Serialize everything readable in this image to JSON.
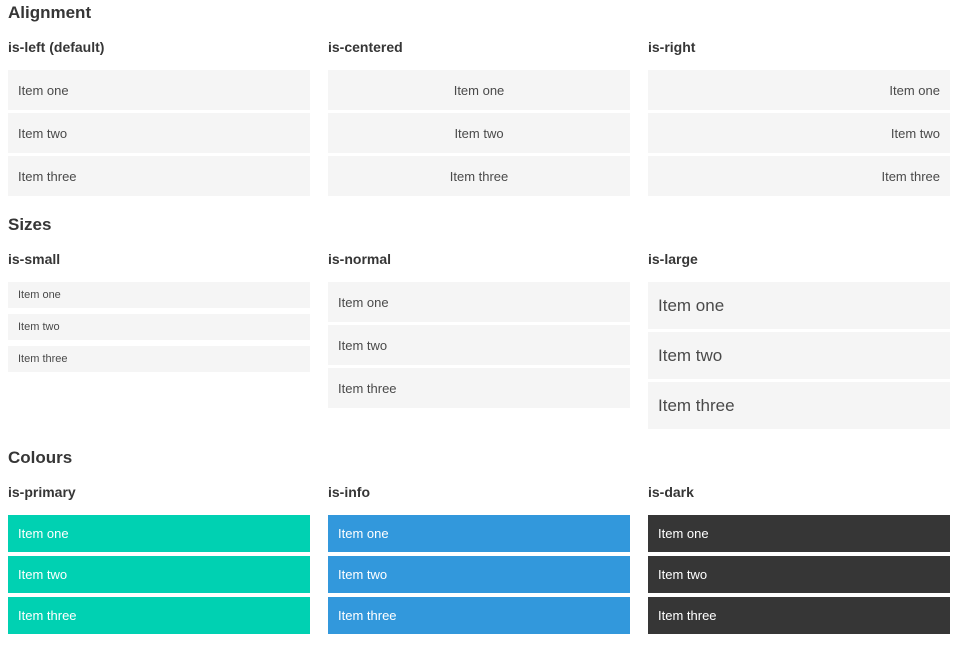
{
  "colors": {
    "primary": "#00d1b2",
    "info": "#3298dc",
    "dark": "#363636",
    "item_bg": "#f5f5f5",
    "item_text": "#4a4a4a",
    "heading_text": "#363636"
  },
  "sections": [
    {
      "title": "Alignment",
      "groups": [
        {
          "label": "is-left (default)",
          "variant": "left",
          "items": [
            "Item one",
            "Item two",
            "Item three"
          ]
        },
        {
          "label": "is-centered",
          "variant": "centered",
          "items": [
            "Item one",
            "Item two",
            "Item three"
          ]
        },
        {
          "label": "is-right",
          "variant": "right",
          "items": [
            "Item one",
            "Item two",
            "Item three"
          ]
        }
      ]
    },
    {
      "title": "Sizes",
      "groups": [
        {
          "label": "is-small",
          "variant": "small",
          "items": [
            "Item one",
            "Item two",
            "Item three"
          ]
        },
        {
          "label": "is-normal",
          "variant": "normal",
          "items": [
            "Item one",
            "Item two",
            "Item three"
          ]
        },
        {
          "label": "is-large",
          "variant": "large",
          "items": [
            "Item one",
            "Item two",
            "Item three"
          ]
        }
      ]
    },
    {
      "title": "Colours",
      "groups": [
        {
          "label": "is-primary",
          "variant": "primary",
          "items": [
            "Item one",
            "Item two",
            "Item three"
          ]
        },
        {
          "label": "is-info",
          "variant": "info",
          "items": [
            "Item one",
            "Item two",
            "Item three"
          ]
        },
        {
          "label": "is-dark",
          "variant": "dark",
          "items": [
            "Item one",
            "Item two",
            "Item three"
          ]
        }
      ]
    }
  ]
}
